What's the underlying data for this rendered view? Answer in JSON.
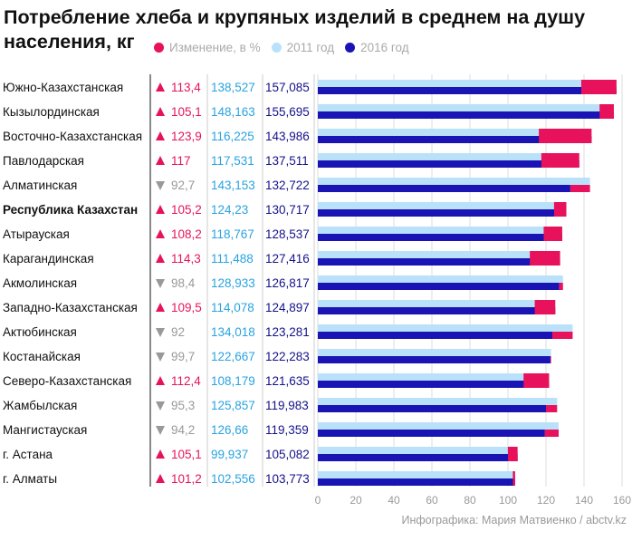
{
  "chart_data": {
    "type": "bar",
    "title": "Потребление хлеба и крупяных изделий в среднем на душу населения, кг",
    "legend": {
      "position": "top",
      "entries": [
        {
          "label": "Изменение, в %",
          "color": "#e8125c"
        },
        {
          "label": "2011 год",
          "color": "#b9e2fa"
        },
        {
          "label": "2016 год",
          "color": "#1a14b4"
        }
      ]
    },
    "colors": {
      "up": "#e8125c",
      "down": "#999999",
      "y2011_text": "#29a3e0",
      "y2016_text": "#15128a",
      "bar_2011": "#b9e2fa",
      "bar_2016": "#1a14b4",
      "bar_change": "#e8125c"
    },
    "xlim": [
      0,
      160
    ],
    "x_ticks": [
      "0",
      "20",
      "40",
      "60",
      "80",
      "100",
      "120",
      "140",
      "160"
    ],
    "grid": true,
    "series": [
      {
        "name": "2011 год",
        "values": [
          138.527,
          148.163,
          116.225,
          117.531,
          143.153,
          124.23,
          118.767,
          111.488,
          128.933,
          114.078,
          134.018,
          122.667,
          108.179,
          125.857,
          126.66,
          99.937,
          102.556
        ]
      },
      {
        "name": "2016 год",
        "values": [
          157.085,
          155.695,
          143.986,
          137.511,
          132.722,
          130.717,
          128.537,
          127.416,
          126.817,
          124.897,
          123.281,
          122.283,
          121.635,
          119.983,
          119.359,
          105.082,
          103.773
        ]
      },
      {
        "name": "Изменение, в %",
        "values": [
          113.4,
          105.1,
          123.9,
          117,
          92.7,
          105.2,
          108.2,
          114.3,
          98.4,
          109.5,
          92,
          99.7,
          112.4,
          95.3,
          94.2,
          105.1,
          101.2
        ]
      }
    ],
    "rows": [
      {
        "region": "Южно-Казахстанская",
        "dir": "up",
        "change": "113,4",
        "y2011": "138,527",
        "y2016": "157,085",
        "bold": false
      },
      {
        "region": "Кызылординская",
        "dir": "up",
        "change": "105,1",
        "y2011": "148,163",
        "y2016": "155,695",
        "bold": false
      },
      {
        "region": "Восточно-Казахстанская",
        "dir": "up",
        "change": "123,9",
        "y2011": "116,225",
        "y2016": "143,986",
        "bold": false
      },
      {
        "region": "Павлодарская",
        "dir": "up",
        "change": "117",
        "y2011": "117,531",
        "y2016": "137,511",
        "bold": false
      },
      {
        "region": "Алматинская",
        "dir": "down",
        "change": "92,7",
        "y2011": "143,153",
        "y2016": "132,722",
        "bold": false
      },
      {
        "region": "Республика Казахстан",
        "dir": "up",
        "change": "105,2",
        "y2011": "124,23",
        "y2016": "130,717",
        "bold": true
      },
      {
        "region": "Атырауская",
        "dir": "up",
        "change": "108,2",
        "y2011": "118,767",
        "y2016": "128,537",
        "bold": false
      },
      {
        "region": "Карагандинская",
        "dir": "up",
        "change": "114,3",
        "y2011": "111,488",
        "y2016": "127,416",
        "bold": false
      },
      {
        "region": "Акмолинская",
        "dir": "down",
        "change": "98,4",
        "y2011": "128,933",
        "y2016": "126,817",
        "bold": false
      },
      {
        "region": "Западно-Казахстанская",
        "dir": "up",
        "change": "109,5",
        "y2011": "114,078",
        "y2016": "124,897",
        "bold": false
      },
      {
        "region": "Актюбинская",
        "dir": "down",
        "change": "92",
        "y2011": "134,018",
        "y2016": "123,281",
        "bold": false
      },
      {
        "region": "Костанайская",
        "dir": "down",
        "change": "99,7",
        "y2011": "122,667",
        "y2016": "122,283",
        "bold": false
      },
      {
        "region": "Северо-Казахстанская",
        "dir": "up",
        "change": "112,4",
        "y2011": "108,179",
        "y2016": "121,635",
        "bold": false
      },
      {
        "region": "Жамбылская",
        "dir": "down",
        "change": "95,3",
        "y2011": "125,857",
        "y2016": "119,983",
        "bold": false
      },
      {
        "region": "Мангистауская",
        "dir": "down",
        "change": "94,2",
        "y2011": "126,66",
        "y2016": "119,359",
        "bold": false
      },
      {
        "region": "г. Астана",
        "dir": "up",
        "change": "105,1",
        "y2011": "99,937",
        "y2016": "105,082",
        "bold": false
      },
      {
        "region": "г. Алматы",
        "dir": "up",
        "change": "101,2",
        "y2011": "102,556",
        "y2016": "103,773",
        "bold": false
      }
    ]
  },
  "credit": "Инфографика: Мария Матвиенко / abctv.kz"
}
